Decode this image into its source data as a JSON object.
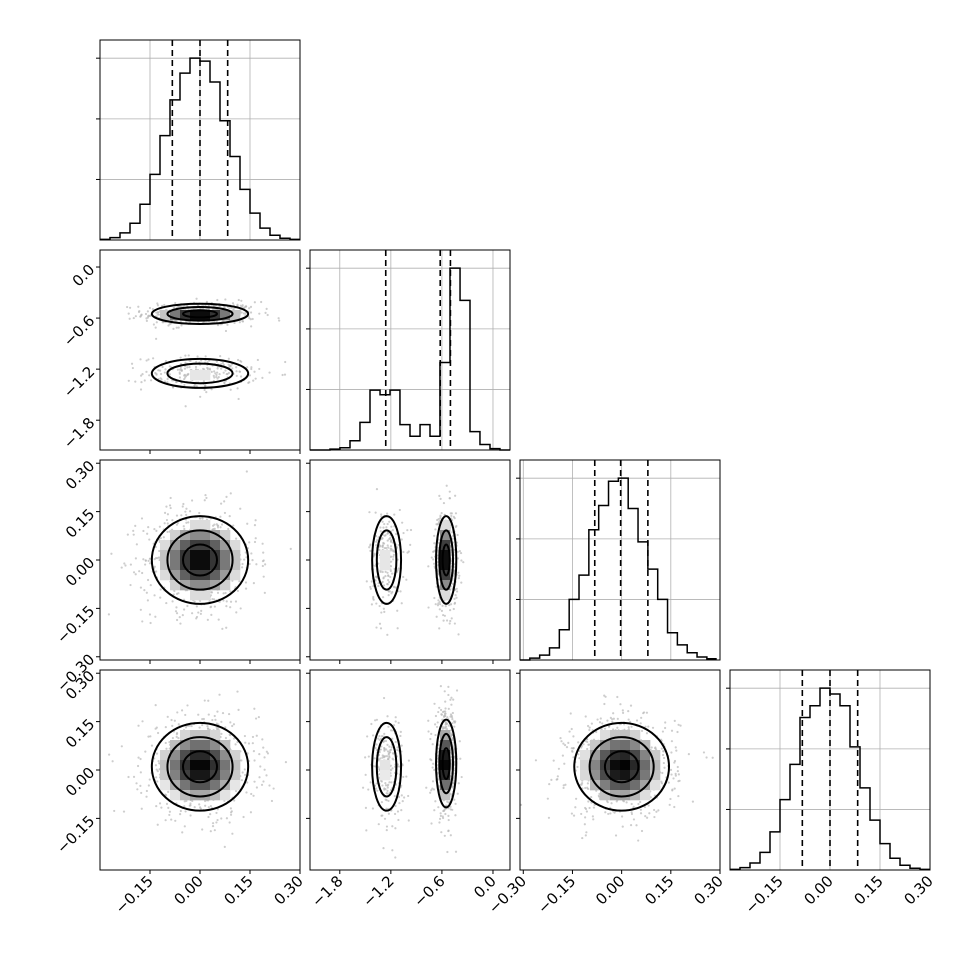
{
  "chart_data": {
    "type": "corner",
    "parameters": 4,
    "grid": true,
    "quantiles": [
      0.16,
      0.5,
      0.84
    ],
    "x_ticks": [
      {
        "values": [
          -0.15,
          0.0,
          0.15,
          0.3
        ],
        "labels": [
          "−0.15",
          "0.00",
          "0.15",
          "0.30"
        ],
        "range": [
          -0.3,
          0.3
        ]
      },
      {
        "values": [
          -1.8,
          -1.2,
          -0.6,
          0.0
        ],
        "labels": [
          "−1.8",
          "−1.2",
          "−0.6",
          "0.0"
        ],
        "range": [
          -2.15,
          0.2
        ]
      },
      {
        "values": [
          -0.3,
          -0.15,
          0.0,
          0.15,
          0.3
        ],
        "labels": [
          "−0.30",
          "−0.15",
          "0.00",
          "0.15",
          "0.30"
        ],
        "range": [
          -0.31,
          0.3
        ]
      },
      {
        "values": [
          -0.15,
          0.0,
          0.15,
          0.3
        ],
        "labels": [
          "−0.15",
          "0.00",
          "0.15",
          "0.30"
        ],
        "range": [
          -0.3,
          0.3
        ]
      }
    ],
    "y_ticks": [
      {
        "values": [
          0.0,
          -0.6,
          -1.2,
          -1.8
        ],
        "labels": [
          "0.0",
          "−0.6",
          "−1.2",
          "−1.8"
        ],
        "range": [
          -2.15,
          0.2
        ]
      },
      {
        "values": [
          0.3,
          0.15,
          0.0,
          -0.15,
          -0.3
        ],
        "labels": [
          "0.30",
          "0.15",
          "0.00",
          "−0.15",
          "−0.30"
        ],
        "range": [
          -0.31,
          0.31
        ]
      },
      {
        "values": [
          0.3,
          0.15,
          0.0,
          -0.15
        ],
        "labels": [
          "0.30",
          "0.15",
          "0.00",
          "−0.15"
        ],
        "range": [
          -0.31,
          0.31
        ]
      }
    ],
    "marginals": [
      {
        "param": 1,
        "bin_edges": [
          -0.3,
          -0.27,
          -0.24,
          -0.21,
          -0.18,
          -0.15,
          -0.12,
          -0.09,
          -0.06,
          -0.03,
          0.0,
          0.03,
          0.06,
          0.09,
          0.12,
          0.15,
          0.18,
          0.21,
          0.24,
          0.27,
          0.3
        ],
        "counts": [
          1,
          4,
          12,
          28,
          60,
          110,
          175,
          235,
          280,
          305,
          300,
          265,
          200,
          140,
          85,
          45,
          20,
          8,
          3,
          1
        ],
        "quantile_values": [
          -0.083,
          0.0,
          0.083
        ]
      },
      {
        "param": 2,
        "bin_edges": [
          -2.15,
          -2.033,
          -1.915,
          -1.798,
          -1.68,
          -1.563,
          -1.445,
          -1.327,
          -1.21,
          -1.093,
          -0.975,
          -0.857,
          -0.74,
          -0.623,
          -0.505,
          -0.387,
          -0.27,
          -0.153,
          -0.035,
          0.082,
          0.2
        ],
        "counts": [
          0,
          0,
          2,
          5,
          20,
          60,
          130,
          120,
          130,
          55,
          30,
          55,
          30,
          190,
          395,
          325,
          40,
          12,
          3,
          0
        ],
        "quantile_values": [
          -1.26,
          -0.62,
          -0.5
        ]
      },
      {
        "param": 3,
        "bin_edges": [
          -0.31,
          -0.28,
          -0.25,
          -0.22,
          -0.19,
          -0.16,
          -0.13,
          -0.1,
          -0.07,
          -0.04,
          -0.01,
          0.02,
          0.05,
          0.08,
          0.11,
          0.14,
          0.17,
          0.2,
          0.23,
          0.26,
          0.29
        ],
        "counts": [
          0,
          3,
          8,
          20,
          50,
          100,
          140,
          215,
          255,
          295,
          300,
          250,
          195,
          150,
          100,
          45,
          25,
          12,
          5,
          2
        ],
        "quantile_values": [
          -0.082,
          -0.003,
          0.08
        ]
      },
      {
        "param": 4,
        "bin_edges": [
          -0.3,
          -0.27,
          -0.24,
          -0.21,
          -0.18,
          -0.15,
          -0.12,
          -0.09,
          -0.06,
          -0.03,
          0.0,
          0.03,
          0.06,
          0.09,
          0.12,
          0.15,
          0.18,
          0.21,
          0.24,
          0.27,
          0.3
        ],
        "counts": [
          1,
          4,
          12,
          30,
          65,
          120,
          180,
          260,
          280,
          310,
          300,
          280,
          210,
          140,
          85,
          45,
          20,
          8,
          3,
          1
        ],
        "quantile_values": [
          -0.083,
          0.0,
          0.083
        ]
      }
    ],
    "joint": [
      {
        "x_param": 1,
        "y_param": 2,
        "modes": [
          {
            "cx": 0.0,
            "cy": -0.55,
            "sx": 0.085,
            "sy": 0.07,
            "weight": 0.65
          },
          {
            "cx": 0.0,
            "cy": -1.25,
            "sx": 0.085,
            "sy": 0.1,
            "weight": 0.35
          }
        ]
      },
      {
        "x_param": 1,
        "y_param": 3,
        "modes": [
          {
            "cx": 0.0,
            "cy": 0.0,
            "sx": 0.085,
            "sy": 0.08,
            "weight": 1.0
          }
        ]
      },
      {
        "x_param": 2,
        "y_param": 3,
        "modes": [
          {
            "cx": -0.55,
            "cy": 0.0,
            "sx": 0.07,
            "sy": 0.08,
            "weight": 0.65
          },
          {
            "cx": -1.25,
            "cy": 0.0,
            "sx": 0.1,
            "sy": 0.08,
            "weight": 0.35
          }
        ]
      },
      {
        "x_param": 1,
        "y_param": 4,
        "modes": [
          {
            "cx": 0.0,
            "cy": 0.01,
            "sx": 0.085,
            "sy": 0.08,
            "weight": 1.0
          }
        ]
      },
      {
        "x_param": 2,
        "y_param": 4,
        "modes": [
          {
            "cx": -0.55,
            "cy": 0.02,
            "sx": 0.07,
            "sy": 0.08,
            "weight": 0.65
          },
          {
            "cx": -1.25,
            "cy": 0.01,
            "sx": 0.1,
            "sy": 0.08,
            "weight": 0.35
          }
        ]
      },
      {
        "x_param": 3,
        "y_param": 4,
        "modes": [
          {
            "cx": 0.0,
            "cy": 0.01,
            "sx": 0.085,
            "sy": 0.08,
            "weight": 1.0
          }
        ]
      }
    ]
  }
}
